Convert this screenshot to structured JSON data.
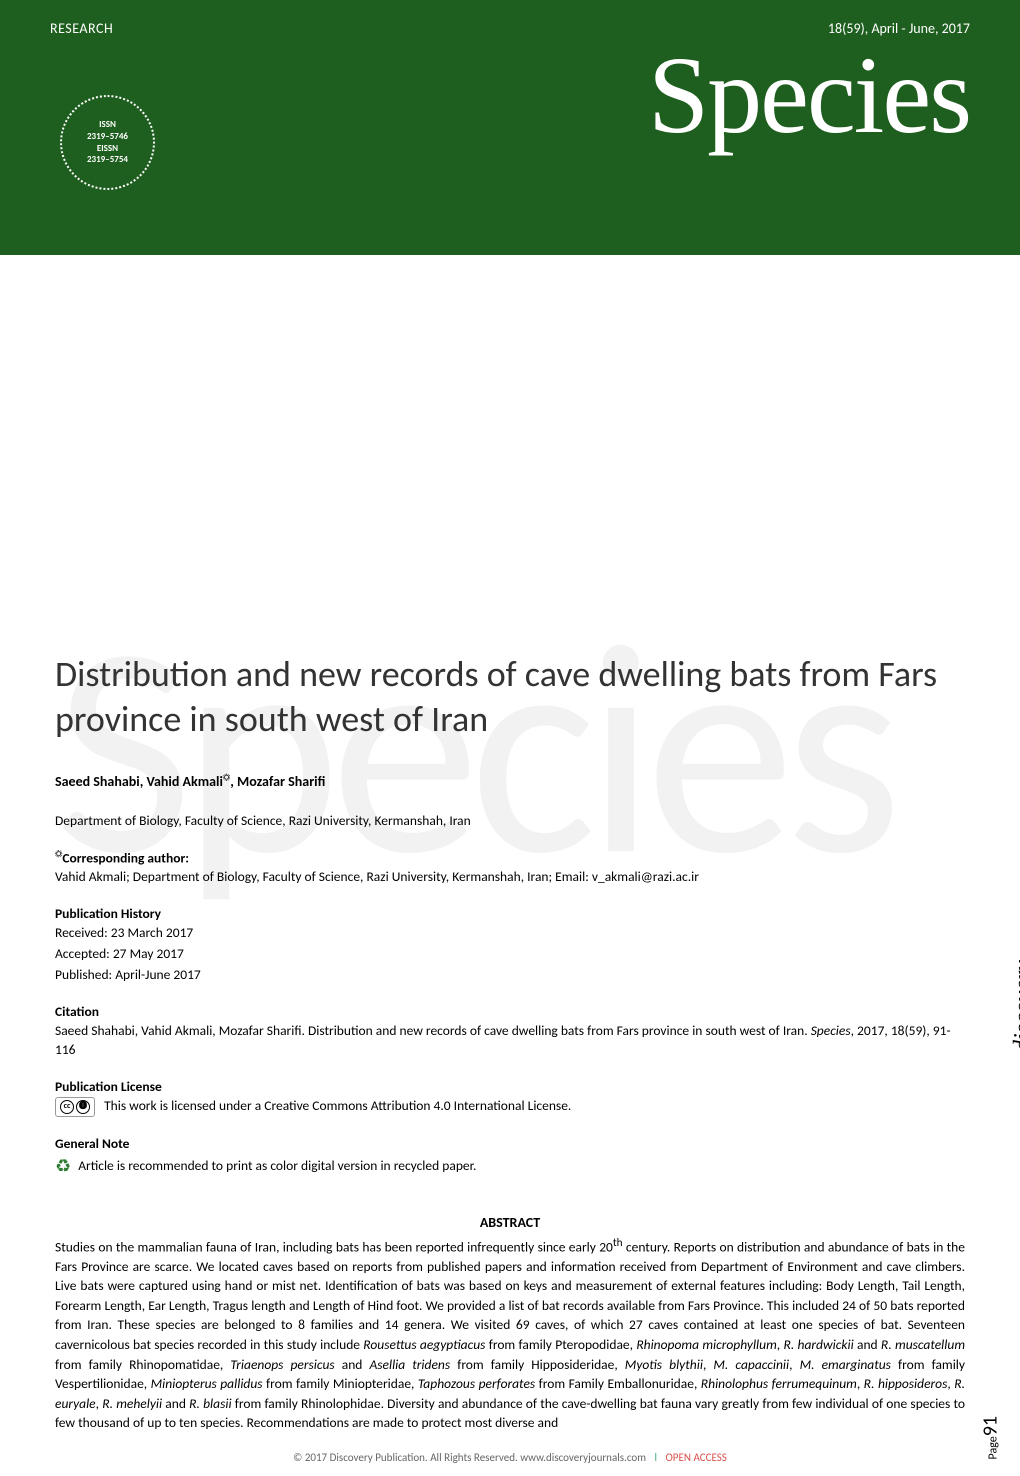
{
  "header": {
    "research_label": "RESEARCH",
    "issue_info": "18(59), April - June, 2017",
    "journal_name": "Species",
    "issn_badge": {
      "line1": "ISSN",
      "line2": "2319–5746",
      "line3": "EISSN",
      "line4": "2319–5754"
    }
  },
  "article": {
    "title": "Distribution and new records of cave dwelling bats from Fars province in south west of Iran",
    "authors_html": "Saeed Shahabi, Vahid Akmali☼, Mozafar Sharifi",
    "affiliation": "Department of Biology, Faculty of Science, Razi University, Kermanshah, Iran",
    "corresponding_label": "☼Corresponding author:",
    "corresponding_text": "Vahid Akmali; Department of Biology, Faculty of Science, Razi University, Kermanshah, Iran; Email: v_akmali@razi.ac.ir",
    "pub_history_label": "Publication History",
    "received": "Received: 23 March 2017",
    "accepted": "Accepted: 27 May 2017",
    "published": "Published: April-June 2017",
    "citation_label": "Citation",
    "citation_text": "Saeed Shahabi, Vahid Akmali, Mozafar Sharifi. Distribution and new records of cave dwelling bats from Fars province in south west of Iran. Species, 2017, 18(59), 91-116",
    "license_label": "Publication License",
    "license_text": "This work is licensed under a Creative Commons Attribution 4.0 International License.",
    "general_note_label": "General Note",
    "general_note_text": "Article is recommended to print as color digital version in recycled paper.",
    "abstract_label": "ABSTRACT",
    "abstract_text_parts": [
      "Studies on the mammalian fauna of Iran, including bats has been reported infrequently since early 20",
      "th",
      " century. Reports on distribution and abundance of bats in the Fars Province are scarce. We located caves based on reports from published papers and information received from Department of Environment and cave climbers. Live bats were captured using hand or mist net. Identification of bats was based on keys and measurement of external features including: Body Length, Tail Length, Forearm Length, Ear Length, Tragus length and Length of Hind foot. We provided a list of bat records available from Fars Province. This included 24 of 50 bats reported from Iran. These species are belonged to 8 families and 14 genera. We visited 69 caves, of which 27 caves contained at least one species of bat. Seventeen cavernicolous bat species recorded in this study include ",
      "Rousettus aegyptiacus",
      " from family Pteropodidae, ",
      "Rhinopoma microphyllum",
      ", ",
      "R. hardwickii",
      " and ",
      "R. muscatellum",
      " from family Rhinopomatidae, ",
      "Triaenops persicus",
      " and ",
      "Asellia tridens",
      " from family Hipposideridae, ",
      "Myotis blythii",
      ", ",
      "M. capaccinii",
      ", ",
      "M. emarginatus",
      " from family Vespertilionidae, ",
      "Miniopterus pallidus",
      " from family Miniopteridae, ",
      "Taphozous perforates",
      " from Family Emballonuridae, ",
      "Rhinolophus ferrumequinum",
      ", ",
      "R. hipposideros",
      ", ",
      "R. euryale",
      ", ",
      "R. mehelyii",
      " and ",
      "R. blasii",
      " from family Rhinolophidae. Diversity and abundance of the cave-dwelling bat fauna vary greatly from few individual of one species to few thousand of up to ten species. Recommendations are made to protect most diverse and"
    ]
  },
  "footer": {
    "copyright": "© 2017 Discovery Publication. All Rights Reserved. www.discoveryjournals.com",
    "open_access": "OPEN ACCESS"
  },
  "page": {
    "label": "Page",
    "number": "91"
  },
  "side_logo": "discovery",
  "watermark": "Species",
  "colors": {
    "header_bg": "#1e5e1e",
    "text": "#000000",
    "watermark": "#f2f2f2",
    "open_access": "#d9534f"
  }
}
